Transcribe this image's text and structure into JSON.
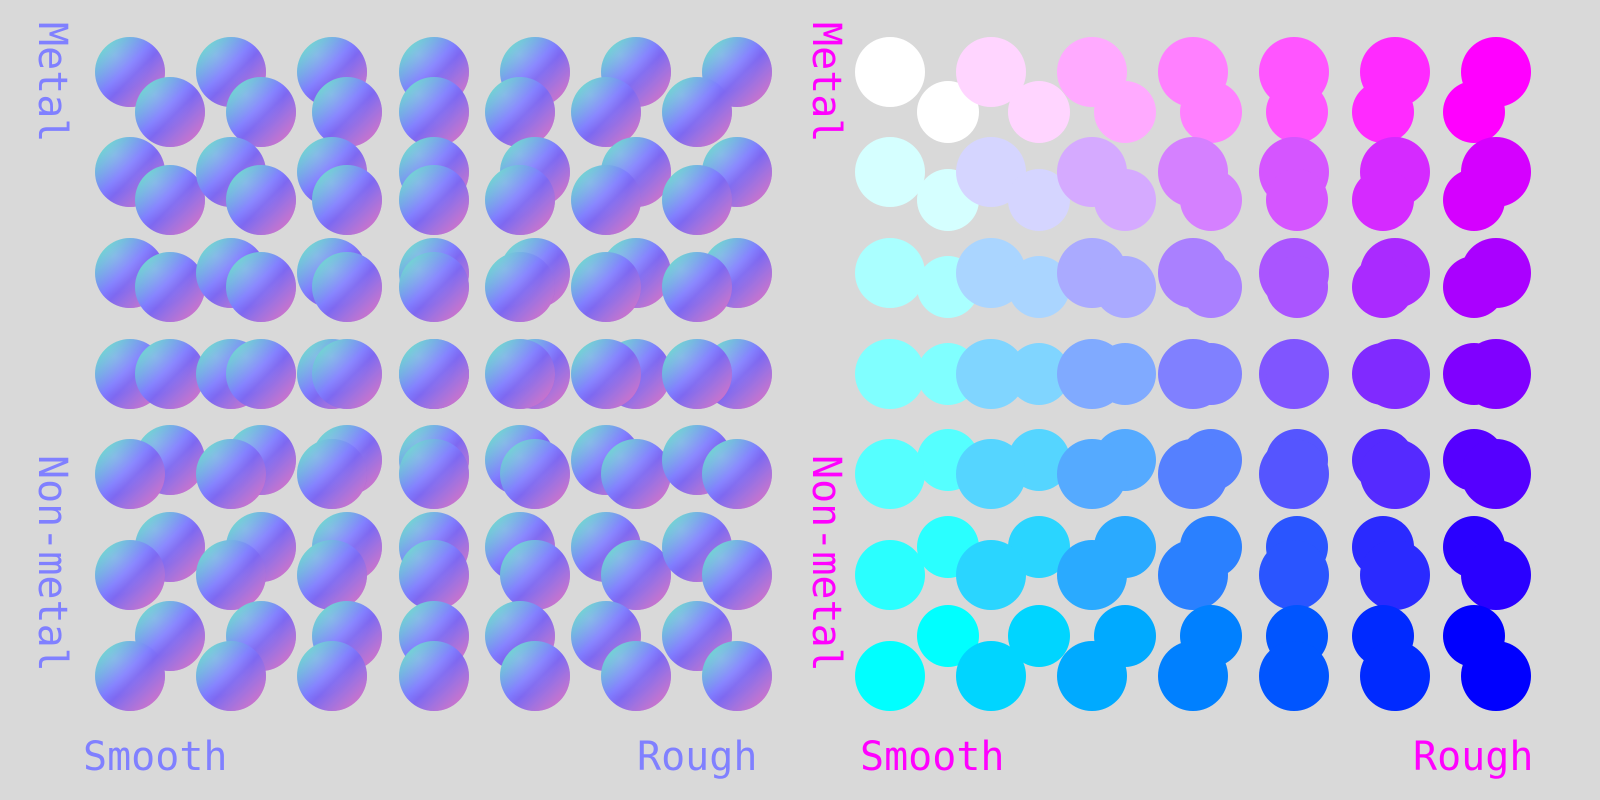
{
  "left_panel": {
    "label_color": "#8080ff",
    "rows_label_top": "Metal",
    "rows_label_bottom": "Non-metal",
    "columns_label_left": "Smooth",
    "columns_label_right": "Rough"
  },
  "right_panel": {
    "label_color": "#ff00ff",
    "rows_label_top": "Metal",
    "rows_label_bottom": "Non-metal",
    "columns_label_left": "Smooth",
    "columns_label_right": "Rough"
  },
  "grid": {
    "rows": 7,
    "columns": 7
  }
}
